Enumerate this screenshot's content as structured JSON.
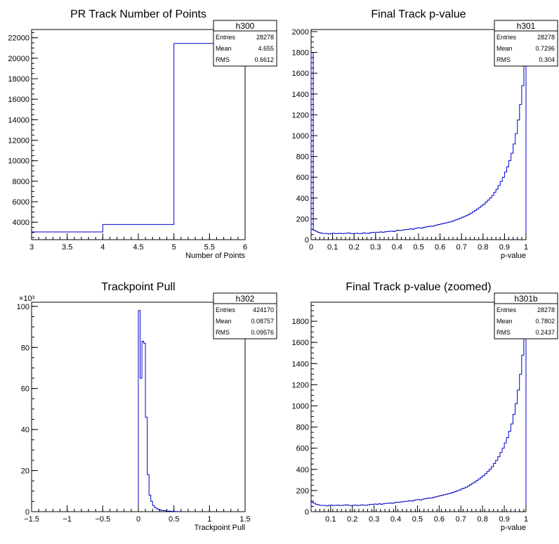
{
  "chart_data": [
    {
      "type": "histogram",
      "title": "PR Track Number of Points",
      "xlabel": "Number of Points",
      "ylabel": "",
      "xlim": [
        3,
        6
      ],
      "ylim": [
        2300,
        22800
      ],
      "xticks": [
        3,
        3.5,
        4,
        4.5,
        5,
        5.5,
        6
      ],
      "xtick_labels": [
        "3",
        "3.5",
        "4",
        "4.5",
        "5",
        "5.5",
        "6"
      ],
      "yticks": [
        4000,
        6000,
        8000,
        10000,
        12000,
        14000,
        16000,
        18000,
        20000,
        22000
      ],
      "ytick_labels": [
        "4000",
        "6000",
        "8000",
        "10000",
        "12000",
        "14000",
        "16000",
        "18000",
        "20000",
        "22000"
      ],
      "y_exponent": "",
      "series_color": "#0000cc",
      "bins": {
        "x": [
          3,
          4,
          5
        ],
        "width": 1,
        "values": [
          3050,
          3780,
          21450
        ]
      },
      "stats": {
        "name": "h300",
        "rows": [
          [
            "Entries",
            "28278"
          ],
          [
            "Mean",
            "4.655"
          ],
          [
            "RMS",
            "0.6612"
          ]
        ]
      }
    },
    {
      "type": "histogram",
      "title": "Final Track p-value",
      "xlabel": "p-value",
      "ylabel": "",
      "xlim": [
        0,
        1
      ],
      "ylim": [
        0,
        2020
      ],
      "xticks": [
        0,
        0.1,
        0.2,
        0.3,
        0.4,
        0.5,
        0.6,
        0.7,
        0.8,
        0.9,
        1
      ],
      "xtick_labels": [
        "0",
        "0.1",
        "0.2",
        "0.3",
        "0.4",
        "0.5",
        "0.6",
        "0.7",
        "0.8",
        "0.9",
        "1"
      ],
      "yticks": [
        0,
        200,
        400,
        600,
        800,
        1000,
        1200,
        1400,
        1600,
        1800,
        2000
      ],
      "ytick_labels": [
        "0",
        "200",
        "400",
        "600",
        "800",
        "1000",
        "1200",
        "1400",
        "1600",
        "1800",
        "2000"
      ],
      "y_exponent": "",
      "series_color": "#0000cc",
      "bins": {
        "x0": 0,
        "width": 0.01,
        "values": [
          1800,
          90,
          80,
          70,
          65,
          60,
          60,
          58,
          55,
          60,
          62,
          58,
          60,
          62,
          58,
          60,
          62,
          65,
          60,
          58,
          60,
          62,
          58,
          60,
          65,
          62,
          60,
          65,
          70,
          68,
          72,
          70,
          75,
          70,
          75,
          78,
          80,
          82,
          78,
          85,
          90,
          88,
          92,
          95,
          98,
          100,
          105,
          100,
          108,
          112,
          115,
          110,
          118,
          122,
          125,
          130,
          128,
          135,
          140,
          145,
          150,
          155,
          160,
          165,
          170,
          175,
          182,
          190,
          198,
          205,
          215,
          222,
          232,
          242,
          255,
          268,
          280,
          295,
          310,
          325,
          340,
          360,
          380,
          400,
          425,
          455,
          485,
          520,
          560,
          600,
          650,
          700,
          760,
          830,
          920,
          1020,
          1150,
          1300,
          1480,
          1750
        ]
      },
      "stats": {
        "name": "h301",
        "rows": [
          [
            "Entries",
            "28278"
          ],
          [
            "Mean",
            "0.7296"
          ],
          [
            "RMS",
            "0.304"
          ]
        ]
      }
    },
    {
      "type": "histogram",
      "title": "Trackpoint Pull",
      "xlabel": "Trackpoint Pull",
      "ylabel": "",
      "xlim": [
        -1.5,
        1.5
      ],
      "ylim": [
        0,
        102
      ],
      "xticks": [
        -1.5,
        -1,
        -0.5,
        0,
        0.5,
        1,
        1.5
      ],
      "xtick_labels": [
        "−1.5",
        "−1",
        "−0.5",
        "0",
        "0.5",
        "1",
        "1.5"
      ],
      "yticks": [
        0,
        20,
        40,
        60,
        80,
        100
      ],
      "ytick_labels": [
        "0",
        "20",
        "40",
        "60",
        "80",
        "100"
      ],
      "y_exponent": "×10³",
      "series_color": "#0000cc",
      "bins": {
        "x0": 0,
        "width": 0.025,
        "values": [
          98,
          65,
          83,
          82,
          46,
          18,
          8,
          5,
          3,
          2,
          1.5,
          1,
          0.8,
          0.6,
          0.5,
          0.4,
          0.3,
          0.25,
          0.2,
          0.15,
          0.1,
          0.1,
          0.05,
          0.05
        ]
      },
      "stats": {
        "name": "h302",
        "rows": [
          [
            "Entries",
            "424170"
          ],
          [
            "Mean",
            "0.08757"
          ],
          [
            "RMS",
            "0.09576"
          ]
        ]
      }
    },
    {
      "type": "histogram",
      "title": "Final Track p-value (zoomed)",
      "xlabel": "p-value",
      "ylabel": "",
      "xlim": [
        0.01,
        1
      ],
      "ylim": [
        0,
        1980
      ],
      "xticks": [
        0.1,
        0.2,
        0.3,
        0.4,
        0.5,
        0.6,
        0.7,
        0.8,
        0.9,
        1
      ],
      "xtick_labels": [
        "0.1",
        "0.2",
        "0.3",
        "0.4",
        "0.5",
        "0.6",
        "0.7",
        "0.8",
        "0.9",
        "1"
      ],
      "yticks": [
        0,
        200,
        400,
        600,
        800,
        1000,
        1200,
        1400,
        1600,
        1800
      ],
      "ytick_labels": [
        "0",
        "200",
        "400",
        "600",
        "800",
        "1000",
        "1200",
        "1400",
        "1600",
        "1800"
      ],
      "y_exponent": "",
      "series_color": "#0000cc",
      "bins": {
        "x0": 0.01,
        "width": 0.01,
        "values": [
          90,
          80,
          70,
          65,
          60,
          60,
          58,
          55,
          60,
          62,
          58,
          60,
          62,
          58,
          60,
          62,
          65,
          60,
          58,
          60,
          62,
          58,
          60,
          65,
          62,
          60,
          65,
          70,
          68,
          72,
          70,
          75,
          70,
          75,
          78,
          80,
          82,
          78,
          85,
          90,
          88,
          92,
          95,
          98,
          100,
          105,
          100,
          108,
          112,
          115,
          110,
          118,
          122,
          125,
          130,
          128,
          135,
          140,
          145,
          150,
          155,
          160,
          165,
          170,
          175,
          182,
          190,
          198,
          205,
          215,
          222,
          232,
          242,
          255,
          268,
          280,
          295,
          310,
          325,
          340,
          360,
          380,
          400,
          425,
          455,
          485,
          520,
          560,
          600,
          650,
          700,
          760,
          830,
          920,
          1020,
          1150,
          1300,
          1480,
          1750
        ]
      },
      "stats": {
        "name": "h301b",
        "rows": [
          [
            "Entries",
            "28278"
          ],
          [
            "Mean",
            "0.7802"
          ],
          [
            "RMS",
            "0.2437"
          ]
        ]
      }
    }
  ]
}
